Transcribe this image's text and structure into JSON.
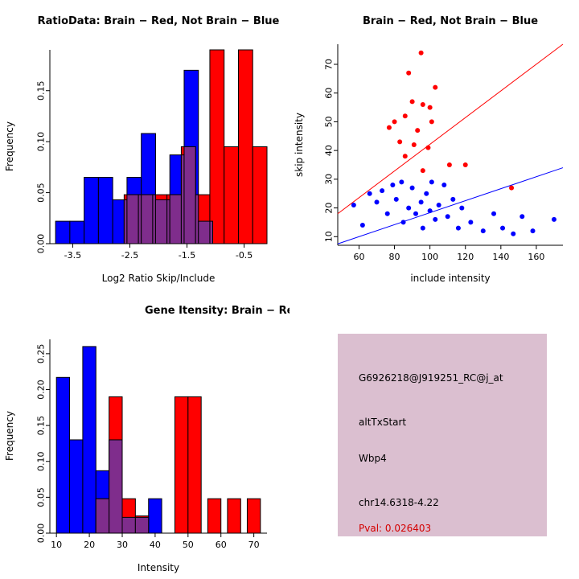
{
  "page": {
    "background": "#FFFFFF"
  },
  "chart_data": [
    {
      "id": "ratio-histogram",
      "type": "histogram-overlay",
      "title": "RatioData: Brain − Red, Not Brain − Blue",
      "xlabel": "Log2 Ratio Skip/Include",
      "ylabel": "Frequency",
      "xlim": [
        -3.9,
        -0.1
      ],
      "ylim": [
        0,
        0.19
      ],
      "xticks": [
        -3.5,
        -2.5,
        -1.5,
        -0.5
      ],
      "xtick_labels": [
        "-3.5",
        "-2.5",
        "-1.5",
        "-0.5"
      ],
      "yticks": [
        0,
        0.05,
        0.1,
        0.15
      ],
      "ytick_labels": [
        "0.00",
        "0.05",
        "0.10",
        "0.15"
      ],
      "bin_width": 0.25,
      "overlap_color": "#7F2D8C",
      "grid": false,
      "series": [
        {
          "name": "Not Brain",
          "color": "#0000FF",
          "bins": [
            [
              -3.8,
              0.022
            ],
            [
              -3.55,
              0.022
            ],
            [
              -3.3,
              0.065
            ],
            [
              -3.05,
              0.065
            ],
            [
              -2.8,
              0.043
            ],
            [
              -2.55,
              0.065
            ],
            [
              -2.3,
              0.108
            ],
            [
              -2.05,
              0.043
            ],
            [
              -1.8,
              0.087
            ],
            [
              -1.55,
              0.17
            ],
            [
              -1.3,
              0.022
            ]
          ]
        },
        {
          "name": "Brain",
          "color": "#FF0000",
          "bins": [
            [
              -2.6,
              0.048
            ],
            [
              -2.35,
              0.048
            ],
            [
              -2.1,
              0.048
            ],
            [
              -1.85,
              0.048
            ],
            [
              -1.6,
              0.095
            ],
            [
              -1.35,
              0.048
            ],
            [
              -1.1,
              0.19
            ],
            [
              -0.85,
              0.095
            ],
            [
              -0.6,
              0.19
            ],
            [
              -0.35,
              0.095
            ]
          ]
        }
      ]
    },
    {
      "id": "intensity-scatter",
      "type": "scatter",
      "title": "Brain − Red, Not Brain − Blue",
      "xlabel": "include intensity",
      "ylabel": "skip intensity",
      "xlim": [
        48,
        175
      ],
      "ylim": [
        7,
        77
      ],
      "xticks": [
        60,
        80,
        100,
        120,
        140,
        160
      ],
      "xtick_labels": [
        "60",
        "80",
        "100",
        "120",
        "140",
        "160"
      ],
      "yticks": [
        10,
        20,
        30,
        40,
        50,
        60,
        70
      ],
      "ytick_labels": [
        "10",
        "20",
        "30",
        "40",
        "50",
        "60",
        "70"
      ],
      "grid": false,
      "lines": [
        {
          "name": "brain-fit-line",
          "color": "#FF0000",
          "from": [
            48,
            18
          ],
          "to": [
            175,
            77
          ]
        },
        {
          "name": "notbrain-fit-line",
          "color": "#0000FF",
          "from": [
            48,
            7.5
          ],
          "to": [
            175,
            34
          ]
        }
      ],
      "series": [
        {
          "name": "Brain",
          "color": "#FF0000",
          "points": [
            [
              88,
              67
            ],
            [
              95,
              74
            ],
            [
              103,
              62
            ],
            [
              90,
              57
            ],
            [
              96,
              56
            ],
            [
              100,
              55
            ],
            [
              86,
              52
            ],
            [
              80,
              50
            ],
            [
              101,
              50
            ],
            [
              77,
              48
            ],
            [
              93,
              47
            ],
            [
              83,
              43
            ],
            [
              91,
              42
            ],
            [
              99,
              41
            ],
            [
              86,
              38
            ],
            [
              111,
              35
            ],
            [
              120,
              35
            ],
            [
              96,
              33
            ],
            [
              146,
              27
            ]
          ]
        },
        {
          "name": "Not Brain",
          "color": "#0000FF",
          "points": [
            [
              57,
              21
            ],
            [
              62,
              14
            ],
            [
              66,
              25
            ],
            [
              70,
              22
            ],
            [
              73,
              26
            ],
            [
              76,
              18
            ],
            [
              79,
              28
            ],
            [
              81,
              23
            ],
            [
              84,
              29
            ],
            [
              85,
              15
            ],
            [
              88,
              20
            ],
            [
              90,
              27
            ],
            [
              92,
              18
            ],
            [
              95,
              22
            ],
            [
              96,
              13
            ],
            [
              98,
              25
            ],
            [
              100,
              19
            ],
            [
              101,
              29
            ],
            [
              103,
              16
            ],
            [
              105,
              21
            ],
            [
              108,
              28
            ],
            [
              110,
              17
            ],
            [
              113,
              23
            ],
            [
              116,
              13
            ],
            [
              118,
              20
            ],
            [
              123,
              15
            ],
            [
              130,
              12
            ],
            [
              136,
              18
            ],
            [
              141,
              13
            ],
            [
              147,
              11
            ],
            [
              152,
              17
            ],
            [
              158,
              12
            ],
            [
              170,
              16
            ]
          ]
        }
      ]
    },
    {
      "id": "gene-intensity-histogram",
      "type": "histogram-overlay",
      "title": "Gene Itensity: Brain − Red, Not Brain − Blue",
      "xlabel": "Intensity",
      "ylabel": "Frequency",
      "xlim": [
        8,
        74
      ],
      "ylim": [
        0,
        0.27
      ],
      "xticks": [
        10,
        20,
        30,
        40,
        50,
        60,
        70
      ],
      "xtick_labels": [
        "10",
        "20",
        "30",
        "40",
        "50",
        "60",
        "70"
      ],
      "yticks": [
        0,
        0.05,
        0.1,
        0.15,
        0.2,
        0.25
      ],
      "ytick_labels": [
        "0.00",
        "0.05",
        "0.10",
        "0.15",
        "0.20",
        "0.25"
      ],
      "bin_width": 4,
      "overlap_color": "#7F2D8C",
      "grid": false,
      "series": [
        {
          "name": "Not Brain",
          "color": "#0000FF",
          "bins": [
            [
              10,
              0.217
            ],
            [
              14,
              0.13
            ],
            [
              18,
              0.26
            ],
            [
              22,
              0.087
            ],
            [
              26,
              0.13
            ],
            [
              30,
              0.022
            ],
            [
              34,
              0.022
            ],
            [
              38,
              0.048
            ]
          ]
        },
        {
          "name": "Brain",
          "color": "#FF0000",
          "bins": [
            [
              22,
              0.048
            ],
            [
              26,
              0.19
            ],
            [
              30,
              0.048
            ],
            [
              34,
              0.024
            ],
            [
              46,
              0.19
            ],
            [
              50,
              0.19
            ],
            [
              56,
              0.048
            ],
            [
              62,
              0.048
            ],
            [
              68,
              0.048
            ]
          ]
        }
      ]
    }
  ],
  "info_box": {
    "background": "#DBBFD0",
    "lines": [
      {
        "text": "G6926218@J919251_RC@j_at",
        "color": "#000000"
      },
      {
        "text": "altTxStart",
        "color": "#000000"
      },
      {
        "text": "Wbp4",
        "color": "#000000"
      },
      {
        "text": "chr14.6318-4.22",
        "color": "#000000"
      },
      {
        "text": "Pval: 0.026403",
        "color": "#D40000"
      }
    ]
  }
}
